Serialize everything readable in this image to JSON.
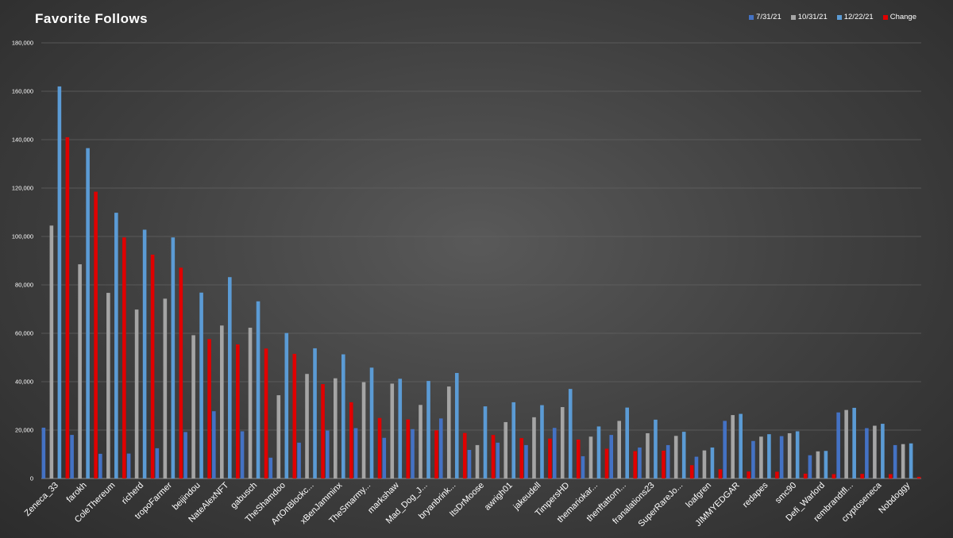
{
  "chart_data": {
    "type": "bar",
    "title": "Favorite Follows",
    "xlabel": "",
    "ylabel": "",
    "ylim": [
      0,
      180000
    ],
    "yticks": [
      0,
      20000,
      40000,
      60000,
      80000,
      100000,
      120000,
      140000,
      160000,
      180000
    ],
    "ytick_labels": [
      "0",
      "20,000",
      "40,000",
      "60,000",
      "80,000",
      "100,000",
      "120,000",
      "140,000",
      "160,000",
      "180,000"
    ],
    "grid": true,
    "legend_position": "top-right",
    "categories": [
      "Zeneca_33",
      "farokh",
      "ColeThereum",
      "richerd",
      "tropoFarmer",
      "beijindou",
      "NateAlexNFT",
      "gabusch",
      "TheShamdoo",
      "ArtOnBlockc...",
      "xBenJamminx",
      "TheSmarmy...",
      "markshaw",
      "Mad_Dog_J...",
      "bryanbrink...",
      "ItsDrMoose",
      "awrigh01",
      "jakeudell",
      "TimpersHD",
      "themariokar...",
      "thenftattorn...",
      "franalations23",
      "SuperRareJo...",
      "loafgren",
      "JIMMYEDGAR",
      "redapes",
      "smc90",
      "Defi_Warlord",
      "rembrandtfl...",
      "cryptoseneca",
      "Nobdoggy"
    ],
    "series": [
      {
        "name": "7/31/21",
        "color": "#4472c4",
        "values": [
          21000,
          18000,
          10200,
          10300,
          12500,
          19200,
          27800,
          19500,
          8600,
          14800,
          19800,
          20800,
          16800,
          20400,
          24800,
          11800,
          14800,
          13800,
          20900,
          9200,
          18000,
          12800,
          13800,
          9000,
          23800,
          15500,
          17500,
          9600,
          27300,
          20800,
          13800
        ]
      },
      {
        "name": "10/31/21",
        "color": "#a5a5a5",
        "values": [
          104500,
          88500,
          76700,
          69800,
          74300,
          59200,
          63200,
          62300,
          34400,
          43200,
          41400,
          39800,
          39200,
          30400,
          38000,
          13800,
          23300,
          25300,
          29500,
          17300,
          23800,
          18700,
          17600,
          11600,
          26200,
          17300,
          18700,
          11200,
          28300,
          21800,
          14200
        ]
      },
      {
        "name": "12/22/21",
        "color": "#5b9bd5",
        "values": [
          162000,
          136500,
          109800,
          102800,
          99600,
          76800,
          83200,
          73200,
          60100,
          53800,
          51300,
          45800,
          41200,
          40300,
          43600,
          29800,
          31500,
          30300,
          37000,
          21500,
          29300,
          24300,
          19300,
          12800,
          26700,
          18300,
          19500,
          11400,
          29200,
          22600,
          14500
        ]
      },
      {
        "name": "Change",
        "color": "#e00000",
        "values": [
          141000,
          118500,
          99600,
          92500,
          87100,
          57600,
          55400,
          53700,
          51500,
          39000,
          31500,
          25000,
          24400,
          19900,
          18800,
          18000,
          16700,
          16500,
          16100,
          12300,
          11300,
          11500,
          5500,
          3800,
          2900,
          2800,
          2000,
          1800,
          1900,
          1800,
          700
        ]
      }
    ]
  }
}
